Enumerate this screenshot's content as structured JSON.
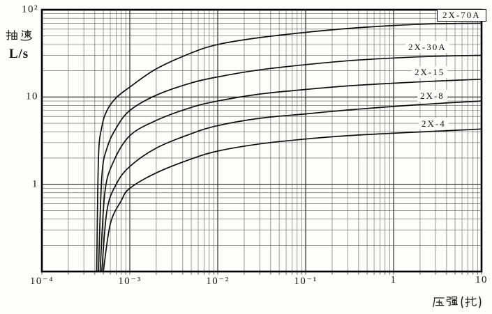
{
  "chart_data": {
    "type": "line",
    "title": "",
    "x_axis": {
      "label": "压强(托)",
      "scale": "log",
      "min": 0.0001,
      "max": 10,
      "tick_values": [
        0.0001,
        0.001,
        0.01,
        0.1,
        1,
        10
      ],
      "tick_labels": [
        "10⁻⁴",
        "10⁻³",
        "10⁻²",
        "10⁻¹",
        "1",
        "10"
      ]
    },
    "y_axis": {
      "label": "抽速",
      "unit": "L/s",
      "scale": "log",
      "min": 0.1,
      "max": 100,
      "tick_values": [
        100,
        10,
        1
      ],
      "tick_labels": [
        "10²",
        "10",
        "1"
      ]
    },
    "grid": "log-log minor and major gridlines, full frame",
    "legend_position": "labels at right end of each curve",
    "series": [
      {
        "name": "2X-70A",
        "boxed_label": true,
        "points": [
          [
            0.00042,
            0.1
          ],
          [
            0.00044,
            2
          ],
          [
            0.00048,
            4.5
          ],
          [
            0.00055,
            7
          ],
          [
            0.0007,
            9.8
          ],
          [
            0.001,
            13
          ],
          [
            0.002,
            21
          ],
          [
            0.005,
            32
          ],
          [
            0.01,
            40
          ],
          [
            0.03,
            48
          ],
          [
            0.1,
            55
          ],
          [
            0.3,
            61
          ],
          [
            1,
            66
          ],
          [
            3,
            69
          ],
          [
            10,
            70
          ]
        ]
      },
      {
        "name": "2X-30A",
        "boxed_label": false,
        "points": [
          [
            0.00044,
            0.1
          ],
          [
            0.00048,
            1.2
          ],
          [
            0.00055,
            2.6
          ],
          [
            0.0007,
            4.4
          ],
          [
            0.001,
            7
          ],
          [
            0.002,
            10.5
          ],
          [
            0.005,
            14.5
          ],
          [
            0.01,
            17
          ],
          [
            0.03,
            20.5
          ],
          [
            0.1,
            23.5
          ],
          [
            0.3,
            26
          ],
          [
            1,
            28
          ],
          [
            3,
            29.3
          ],
          [
            10,
            30
          ]
        ]
      },
      {
        "name": "2X-15",
        "boxed_label": false,
        "points": [
          [
            0.00046,
            0.1
          ],
          [
            0.00052,
            0.8
          ],
          [
            0.00065,
            1.8
          ],
          [
            0.001,
            3.6
          ],
          [
            0.002,
            5.4
          ],
          [
            0.005,
            7.6
          ],
          [
            0.01,
            9
          ],
          [
            0.03,
            10.8
          ],
          [
            0.1,
            12.2
          ],
          [
            0.3,
            13.4
          ],
          [
            1,
            14.4
          ],
          [
            3,
            15.2
          ],
          [
            10,
            16
          ]
        ]
      },
      {
        "name": "2X-8",
        "boxed_label": false,
        "points": [
          [
            0.00048,
            0.1
          ],
          [
            0.00055,
            0.5
          ],
          [
            0.0007,
            1.0
          ],
          [
            0.001,
            1.6
          ],
          [
            0.002,
            2.6
          ],
          [
            0.005,
            3.8
          ],
          [
            0.01,
            4.7
          ],
          [
            0.03,
            5.7
          ],
          [
            0.1,
            6.4
          ],
          [
            0.3,
            7.1
          ],
          [
            1,
            7.8
          ],
          [
            3,
            8.4
          ],
          [
            10,
            9
          ]
        ]
      },
      {
        "name": "2X-4",
        "boxed_label": false,
        "points": [
          [
            0.0005,
            0.1
          ],
          [
            0.0006,
            0.35
          ],
          [
            0.0008,
            0.65
          ],
          [
            0.001,
            0.9
          ],
          [
            0.002,
            1.35
          ],
          [
            0.005,
            1.95
          ],
          [
            0.01,
            2.4
          ],
          [
            0.03,
            2.9
          ],
          [
            0.1,
            3.3
          ],
          [
            0.3,
            3.6
          ],
          [
            1,
            3.85
          ],
          [
            3,
            4.05
          ],
          [
            10,
            4.3
          ]
        ]
      }
    ]
  },
  "colors": {
    "background": "#fdfdfc",
    "curve": "#0d0d0d",
    "grid_minor": "#5a5a5a",
    "grid_major": "#1c1c1c",
    "frame": "#000000",
    "text": "#131313"
  }
}
